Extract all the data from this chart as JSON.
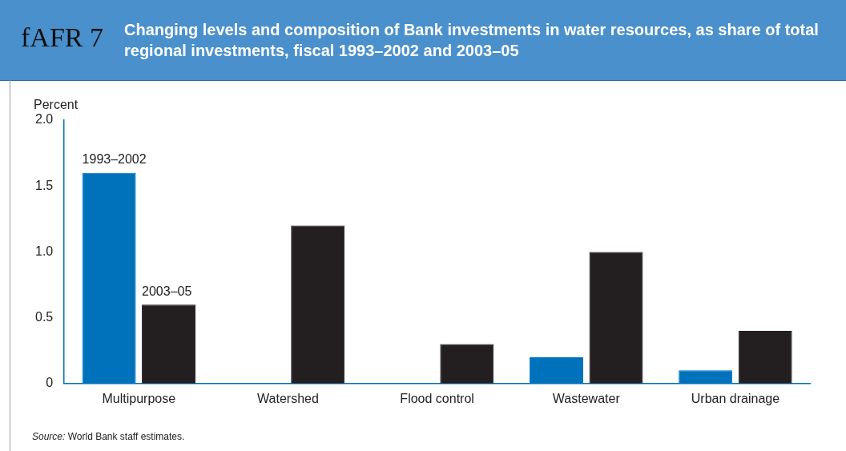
{
  "chart_data": {
    "type": "bar",
    "title": "Changing levels and composition of Bank investments in water resources, as share of total regional investments, fiscal 1993–2002 and 2003–05",
    "ylabel": "Percent",
    "categories": [
      "Multipurpose",
      "Watershed",
      "Flood control",
      "Wastewater",
      "Urban drainage"
    ],
    "series": [
      {
        "name": "1993–2002",
        "color": "#0072bc",
        "values": [
          1.6,
          0,
          0,
          0.2,
          0.1
        ]
      },
      {
        "name": "2003–05",
        "color": "#231f20",
        "values": [
          0.6,
          1.2,
          0.3,
          1.0,
          0.4
        ]
      }
    ],
    "ylim": [
      0,
      2
    ],
    "yticks": [
      0,
      0.5,
      {
        "value": 1,
        "label": "1.0"
      },
      1.5,
      {
        "value": 2,
        "label": "2.0"
      }
    ],
    "grid": false,
    "legend": false,
    "annotations": [
      "fAFR 7",
      "Source: World Bank staff estimates."
    ]
  }
}
